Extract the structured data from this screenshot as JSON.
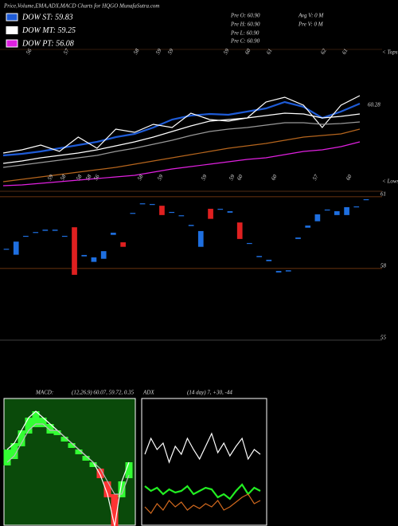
{
  "header": {
    "title": "Price,Volume,EMA,ADX,MACD Charts for HQGO MunafaSutra.com",
    "info": [
      "Pre O: 60.90",
      "Pre H: 60.90",
      "Pre L: 60.90",
      "Pre C: 60.90",
      "Avg V: 0 M",
      "Pre V: 0 M"
    ]
  },
  "chart_data": [
    {
      "type": "line",
      "ylim": [
        54.4,
        61.6
      ],
      "top_labels": [
        "56",
        "57",
        "58",
        "59",
        "59",
        "59",
        "60",
        "61",
        "62",
        "61"
      ],
      "bottom_labels": [
        "59",
        "58",
        "58",
        "58",
        "56",
        "58",
        "59",
        "59",
        "59",
        "60",
        "60",
        "57",
        "60"
      ],
      "annotations": [
        "< Tops",
        "< Lows"
      ],
      "value_label": "60.28",
      "series": [
        {
          "name": "DOW ST: 59.83",
          "color": "#1e5bd6",
          "values": [
            56.2,
            56.28,
            56.4,
            56.56,
            56.72,
            56.88,
            57.12,
            57.28,
            57.6,
            58,
            58.2,
            58.28,
            58.24,
            58.4,
            58.56,
            58.88,
            58.64,
            58.08,
            58.4,
            58.8
          ]
        },
        {
          "name": "DOW MT: 59.25",
          "color": "#ffffff",
          "values": [
            55.8,
            55.92,
            56.08,
            56.2,
            56.32,
            56.48,
            56.68,
            56.88,
            57.12,
            57.4,
            57.68,
            57.92,
            58,
            58.08,
            58.2,
            58.32,
            58.28,
            58.08,
            58.16,
            58.28
          ]
        },
        {
          "name": "DOW PT: 56.08",
          "color": "#e020e0",
          "values": [
            54.68,
            54.72,
            54.8,
            54.88,
            54.96,
            55.04,
            55.12,
            55.2,
            55.36,
            55.52,
            55.64,
            55.76,
            55.88,
            56,
            56.08,
            56.24,
            56.4,
            56.48,
            56.64,
            56.88
          ]
        },
        {
          "color": "#ffffff",
          "values": [
            56.32,
            56.48,
            56.72,
            56.4,
            57.12,
            56.56,
            57.52,
            57.36,
            57.76,
            57.6,
            58.32,
            58,
            57.92,
            58.08,
            58.88,
            59.12,
            58.72,
            57.6,
            58.72,
            59.2
          ]
        },
        {
          "color": "#999999",
          "values": [
            55.6,
            55.72,
            55.84,
            55.96,
            56.08,
            56.2,
            56.4,
            56.56,
            56.76,
            56.96,
            57.2,
            57.4,
            57.52,
            57.6,
            57.72,
            57.84,
            57.84,
            57.76,
            57.8,
            57.88
          ]
        },
        {
          "color": "#b5651d",
          "values": [
            54.88,
            55,
            55.12,
            55.24,
            55.36,
            55.48,
            55.6,
            55.76,
            55.92,
            56.08,
            56.24,
            56.4,
            56.56,
            56.68,
            56.8,
            56.96,
            57.12,
            57.2,
            57.28,
            57.52
          ]
        }
      ]
    },
    {
      "type": "candlestick",
      "up_color": "#1e6fe0",
      "down_color": "#e02020",
      "ylim": [
        54.83,
        61.23
      ],
      "yticks": [
        55,
        58,
        61
      ],
      "open": [
        58.8,
        58.57,
        59.33,
        59.5,
        59.57,
        59.57,
        59.33,
        59.73,
        58.5,
        58.27,
        58.4,
        59.4,
        59.1,
        60.3,
        60.7,
        60.67,
        60.63,
        60.33,
        60.2,
        59.77,
        58.9,
        60.5,
        60.47,
        60.33,
        59.93,
        59.03,
        58.47,
        58.3,
        57.83,
        57.87,
        59.23,
        59.7,
        59.97,
        60.43,
        60.23,
        60.23,
        60.57,
        60.87
      ],
      "close": [
        58.83,
        59.13,
        59.37,
        59.53,
        59.63,
        59.63,
        59.37,
        57.73,
        58.57,
        58.47,
        58.73,
        59.5,
        58.9,
        60.33,
        60.73,
        60.7,
        60.23,
        60.37,
        60.23,
        59.83,
        59.57,
        60.07,
        60.5,
        60.4,
        59.23,
        59.07,
        58.53,
        58.37,
        57.9,
        57.93,
        59.3,
        59.8,
        60.27,
        60.47,
        60.4,
        60.57,
        60.6,
        60.9
      ]
    },
    {
      "type": "line",
      "title": "MACD:",
      "subtitle": "(12,26,9) 60.07, 59.72, 0.35",
      "ylim": [
        40,
        60
      ],
      "background": "#0a4a0a",
      "series": [
        {
          "color": "#ffffff",
          "values": [
            52,
            53,
            55,
            57,
            58,
            57,
            56,
            55,
            54,
            53,
            52,
            51,
            50,
            48,
            45,
            40,
            47,
            50
          ]
        },
        {
          "color": "#bbbbbb",
          "values": [
            50,
            51,
            53,
            55,
            56,
            56,
            55,
            55,
            54,
            53,
            52,
            51,
            50,
            49,
            47,
            45,
            45,
            48
          ]
        }
      ],
      "bar_color": "#33ff33",
      "bar_neg_color": "#ff3333"
    },
    {
      "type": "line",
      "title": "ADX",
      "subtitle": "(14 day) 7, +30, -44",
      "ylim": [
        0,
        80
      ],
      "background": "#000000",
      "series": [
        {
          "color": "#ffffff",
          "values": [
            45,
            55,
            48,
            52,
            40,
            50,
            45,
            55,
            48,
            42,
            50,
            58,
            46,
            52,
            44,
            50,
            55,
            42,
            48,
            45
          ]
        },
        {
          "color": "#22ee22",
          "values": [
            25,
            22,
            24,
            20,
            23,
            21,
            22,
            25,
            20,
            22,
            24,
            23,
            18,
            20,
            17,
            22,
            26,
            20,
            24,
            22
          ]
        },
        {
          "color": "#d2691e",
          "values": [
            12,
            8,
            14,
            10,
            16,
            12,
            15,
            10,
            13,
            11,
            14,
            12,
            16,
            10,
            12,
            15,
            18,
            20,
            14,
            16
          ]
        }
      ]
    }
  ]
}
